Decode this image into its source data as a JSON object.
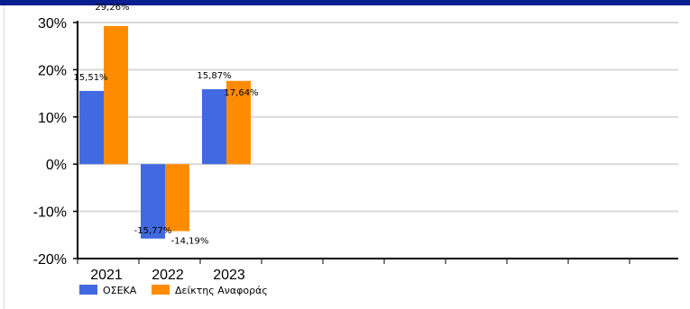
{
  "chart_data": {
    "type": "bar",
    "categories": [
      "2021",
      "2022",
      "2023"
    ],
    "series": [
      {
        "name": "ΟΣΕΚΑ",
        "color": "#4169E1",
        "values": [
          15.51,
          -15.77,
          15.87
        ],
        "labels": [
          "15,51%",
          "-15,77%",
          "15,87%"
        ]
      },
      {
        "name": "Δείκτης Αναφοράς",
        "color": "#FF8C00",
        "values": [
          29.26,
          -14.19,
          17.64
        ],
        "labels": [
          "29,26%",
          "-14,19%",
          "17,64%"
        ]
      }
    ],
    "yticks": [
      30,
      20,
      10,
      0,
      -10,
      -20
    ],
    "ytick_labels": [
      "30%",
      "20%",
      "10%",
      "0%",
      "-10%",
      "-20%"
    ],
    "ylim": [
      -20,
      30
    ],
    "grid": true,
    "legend_position": "bottom-left",
    "header_color": "#0a1f8f"
  }
}
